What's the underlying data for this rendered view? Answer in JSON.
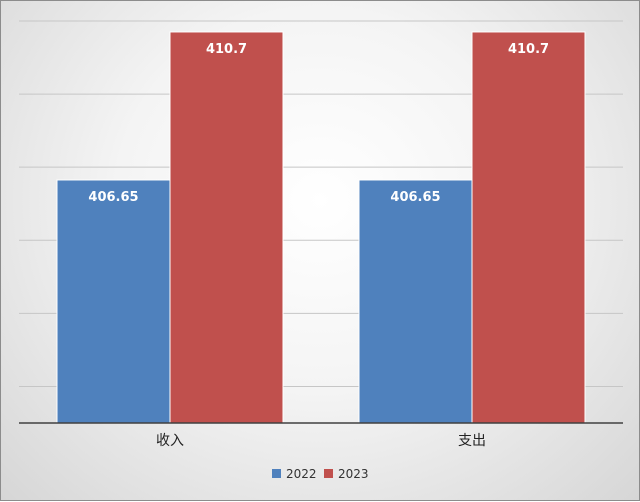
{
  "chart_data": {
    "type": "bar",
    "categories": [
      "收入",
      "支出"
    ],
    "series": [
      {
        "name": "2022",
        "values": [
          406.65,
          406.65
        ],
        "color": "#4f81bd"
      },
      {
        "name": "2023",
        "values": [
          410.7,
          410.7
        ],
        "color": "#c0504d"
      }
    ],
    "ylim": [
      400,
      411
    ],
    "grid": true,
    "legend_position": "bottom",
    "data_labels": [
      "406.65",
      "410.7"
    ]
  }
}
